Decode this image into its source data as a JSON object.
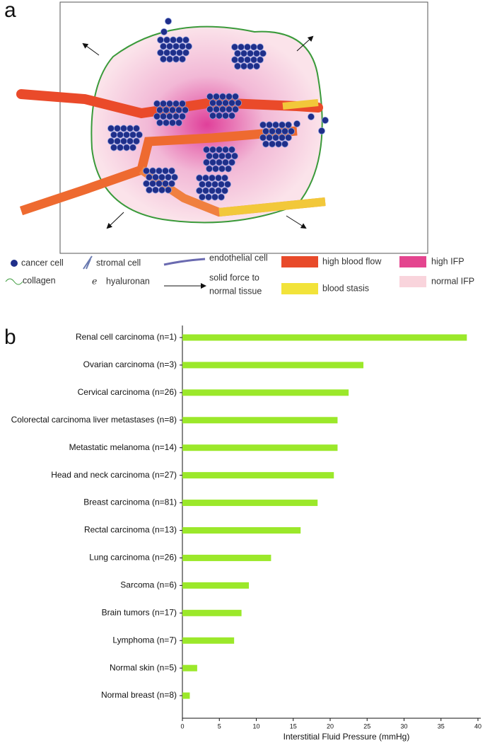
{
  "panel_a": {
    "label": "a",
    "legend": [
      "cancer cell",
      "stromal cell",
      "endothelial cell",
      "high blood flow",
      "high IFP",
      "collagen",
      "hyaluronan",
      "blood stasis",
      "normal IFP"
    ],
    "solid_force": [
      "solid force to",
      "normal tissue"
    ]
  },
  "chart_data": {
    "type": "bar",
    "orientation": "horizontal",
    "panel_label": "b",
    "categories": [
      "Renal cell carcinoma (n=1)",
      "Ovarian carcinoma (n=3)",
      "Cervical carcinoma (n=26)",
      "Colorectal carcinoma liver metastases (n=8)",
      "Metastatic melanoma (n=14)",
      "Head and neck carcinoma (n=27)",
      "Breast carcinoma (n=81)",
      "Rectal carcinoma (n=13)",
      "Lung carcinoma (n=26)",
      "Sarcoma (n=6)",
      "Brain tumors (n=17)",
      "Lymphoma (n=7)",
      "Normal skin (n=5)",
      "Normal breast (n=8)"
    ],
    "values": [
      38.5,
      24.5,
      22.5,
      21,
      21,
      20.5,
      18.3,
      16,
      12,
      9,
      8,
      7,
      2,
      1
    ],
    "color": "#9be82a",
    "xlabel": "Interstitial Fluid Pressure (mmHg)",
    "xlim": [
      0,
      40
    ],
    "xticks": [
      0,
      5,
      10,
      15,
      20,
      25,
      30,
      35,
      40
    ]
  }
}
